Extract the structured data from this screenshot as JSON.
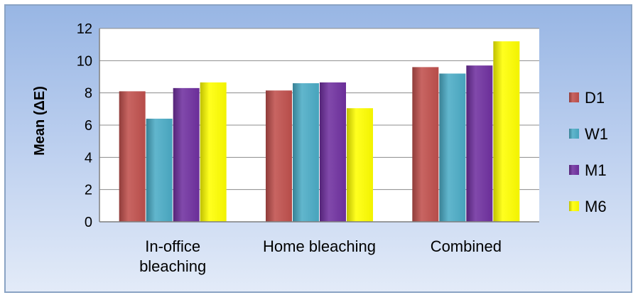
{
  "chart_data": {
    "type": "bar",
    "title": "",
    "xlabel": "",
    "ylabel": "Mean (ΔE)",
    "ylim": [
      0,
      12
    ],
    "yticks": [
      0,
      2,
      4,
      6,
      8,
      10,
      12
    ],
    "grid": true,
    "legend_position": "right",
    "categories": [
      [
        "In-office",
        "bleaching"
      ],
      [
        "Home bleaching"
      ],
      [
        "Combined"
      ]
    ],
    "series": [
      {
        "name": "D1",
        "color": "#c0504d",
        "values": [
          8.1,
          8.15,
          9.6
        ]
      },
      {
        "name": "W1",
        "color": "#4bacc6",
        "values": [
          6.4,
          8.6,
          9.2
        ]
      },
      {
        "name": "M1",
        "color": "#7030a0",
        "values": [
          8.3,
          8.65,
          9.7
        ]
      },
      {
        "name": "M6",
        "color": "#ffff00",
        "values": [
          8.65,
          7.05,
          11.2
        ]
      }
    ]
  }
}
